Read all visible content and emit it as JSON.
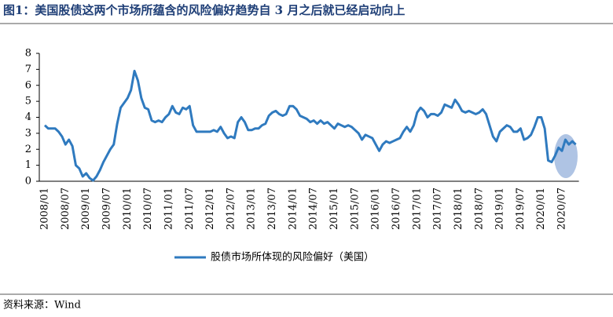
{
  "chart_data": {
    "type": "line",
    "title": "图1：美国股债这两个市场所蕴含的风险偏好趋势自 3 月之后就已经启动向上",
    "source": "资料来源：Wind",
    "categories": [
      "2008/01",
      null,
      null,
      null,
      null,
      null,
      "2008/07",
      null,
      null,
      null,
      null,
      null,
      "2009/01",
      null,
      null,
      null,
      null,
      null,
      "2009/07",
      null,
      null,
      null,
      null,
      null,
      "2010/01",
      null,
      null,
      null,
      null,
      null,
      "2010/07",
      null,
      null,
      null,
      null,
      null,
      "2011/01",
      null,
      null,
      null,
      null,
      null,
      "2011/07",
      null,
      null,
      null,
      null,
      null,
      "2012/01",
      null,
      null,
      null,
      null,
      null,
      "2012/07",
      null,
      null,
      null,
      null,
      null,
      "2013/01",
      null,
      null,
      null,
      null,
      null,
      "2013/07",
      null,
      null,
      null,
      null,
      null,
      "2014/01",
      null,
      null,
      null,
      null,
      null,
      "2014/07",
      null,
      null,
      null,
      null,
      null,
      "2015/01",
      null,
      null,
      null,
      null,
      null,
      "2015/07",
      null,
      null,
      null,
      null,
      null,
      "2016/01",
      null,
      null,
      null,
      null,
      null,
      "2016/07",
      null,
      null,
      null,
      null,
      null,
      "2017/01",
      null,
      null,
      null,
      null,
      null,
      "2017/07",
      null,
      null,
      null,
      null,
      null,
      "2018/01",
      null,
      null,
      null,
      null,
      null,
      "2018/07",
      null,
      null,
      null,
      null,
      null,
      "2019/01",
      null,
      null,
      null,
      null,
      null,
      "2019/07",
      null,
      null,
      null,
      null,
      null,
      "2020/01",
      null,
      null,
      null,
      null,
      null,
      "2020/07",
      null,
      null,
      null,
      null
    ],
    "series": [
      {
        "name": "股债市场所体现的风险偏好（美国）",
        "color": "#2f7abf",
        "values": [
          3.5,
          3.3,
          3.3,
          3.3,
          3.1,
          2.8,
          2.3,
          2.6,
          2.2,
          1.0,
          0.8,
          0.3,
          0.5,
          0.2,
          0.05,
          0.3,
          0.7,
          1.2,
          1.6,
          2.0,
          2.3,
          3.6,
          4.6,
          4.9,
          5.2,
          5.7,
          6.9,
          6.3,
          5.2,
          4.6,
          4.5,
          3.8,
          3.7,
          3.8,
          3.7,
          4.0,
          4.2,
          4.7,
          4.3,
          4.2,
          4.6,
          4.5,
          4.7,
          3.5,
          3.1,
          3.1,
          3.1,
          3.1,
          3.1,
          3.2,
          3.1,
          3.4,
          3.0,
          2.7,
          2.8,
          2.7,
          3.7,
          4.0,
          3.7,
          3.2,
          3.2,
          3.3,
          3.3,
          3.5,
          3.6,
          4.1,
          4.3,
          4.4,
          4.2,
          4.1,
          4.2,
          4.7,
          4.7,
          4.5,
          4.1,
          4.0,
          3.9,
          3.7,
          3.8,
          3.6,
          3.8,
          3.6,
          3.7,
          3.5,
          3.3,
          3.6,
          3.5,
          3.4,
          3.5,
          3.4,
          3.2,
          3.0,
          2.6,
          2.9,
          2.8,
          2.7,
          2.3,
          1.9,
          2.3,
          2.5,
          2.4,
          2.5,
          2.6,
          2.7,
          3.1,
          3.4,
          3.1,
          3.5,
          4.3,
          4.6,
          4.4,
          4.0,
          4.2,
          4.2,
          4.1,
          4.3,
          4.8,
          4.7,
          4.6,
          5.1,
          4.8,
          4.4,
          4.3,
          4.4,
          4.3,
          4.2,
          4.3,
          4.5,
          4.2,
          3.5,
          2.8,
          2.5,
          3.1,
          3.3,
          3.5,
          3.4,
          3.1,
          3.1,
          3.3,
          2.6,
          2.7,
          2.9,
          3.4,
          4.0,
          4.0,
          3.3,
          1.3,
          1.2,
          1.6,
          2.1,
          1.9,
          2.6,
          2.3,
          2.5,
          2.3
        ]
      }
    ],
    "ylim": [
      0,
      8
    ],
    "yticks": [
      0,
      1,
      2,
      3,
      4,
      5,
      6,
      7,
      8
    ],
    "grid": false,
    "legend": "bottom"
  }
}
